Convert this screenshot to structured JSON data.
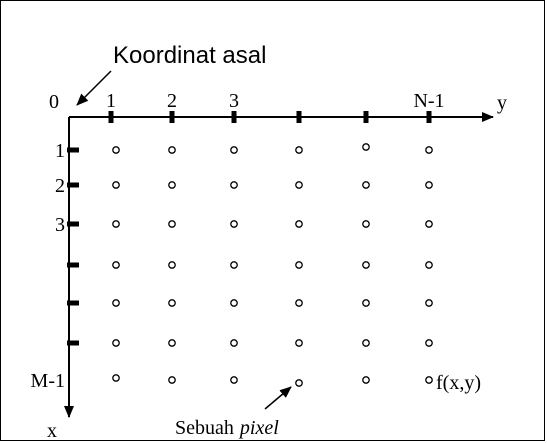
{
  "origin_caption": "Koordinat asal",
  "origin_label": "0",
  "col_labels": [
    "1",
    "2",
    "3",
    "",
    "",
    "N-1"
  ],
  "row_labels": [
    "1",
    "2",
    "3",
    "",
    "",
    "",
    "M-1"
  ],
  "x_axis_label": "x",
  "y_axis_label": "y",
  "pixel_value_label": "f(x,y)",
  "pixel_caption_prefix": "Sebuah",
  "pixel_caption_em": "pixel",
  "grid": {
    "rows": 7,
    "cols": 6
  }
}
